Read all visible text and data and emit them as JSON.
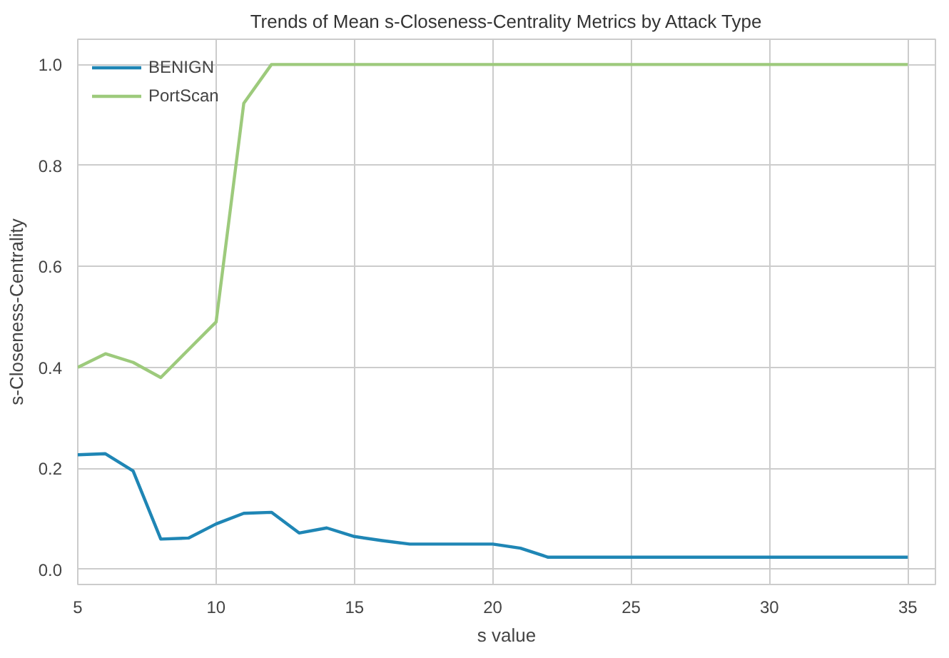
{
  "chart_data": {
    "type": "line",
    "title": "Trends of Mean s-Closeness-Centrality Metrics by Attack Type",
    "xlabel": "s value",
    "ylabel": "s-Closeness-Centrality",
    "x": [
      5,
      6,
      7,
      8,
      9,
      10,
      11,
      12,
      13,
      14,
      15,
      16,
      17,
      18,
      19,
      20,
      21,
      22,
      23,
      24,
      25,
      26,
      27,
      28,
      29,
      30,
      31,
      32,
      33,
      34,
      35
    ],
    "series": [
      {
        "name": "BENIGN",
        "color": "#1f86b5",
        "values": [
          0.227,
          0.229,
          0.195,
          0.06,
          0.062,
          0.09,
          0.111,
          0.113,
          0.072,
          0.082,
          0.065,
          0.057,
          0.05,
          0.05,
          0.05,
          0.05,
          0.042,
          0.024,
          0.024,
          0.024,
          0.024,
          0.024,
          0.024,
          0.024,
          0.024,
          0.024,
          0.024,
          0.024,
          0.024,
          0.024,
          0.024
        ]
      },
      {
        "name": "PortScan",
        "color": "#9dca7c",
        "values": [
          0.4,
          0.427,
          0.41,
          0.38,
          0.435,
          0.49,
          0.923,
          1.0,
          1.0,
          1.0,
          1.0,
          1.0,
          1.0,
          1.0,
          1.0,
          1.0,
          1.0,
          1.0,
          1.0,
          1.0,
          1.0,
          1.0,
          1.0,
          1.0,
          1.0,
          1.0,
          1.0,
          1.0,
          1.0,
          1.0,
          1.0
        ]
      }
    ],
    "xlim": [
      5,
      36
    ],
    "ylim": [
      -0.03,
      1.05
    ],
    "xticks": [
      5,
      10,
      15,
      20,
      25,
      30,
      35
    ],
    "yticks": [
      {
        "value": 0,
        "label": "0.0"
      },
      {
        "value": 0.2,
        "label": "0.2"
      },
      {
        "value": 0.4,
        "label": "0.4"
      },
      {
        "value": 0.6,
        "label": "0.6"
      },
      {
        "value": 0.8,
        "label": "0.8"
      },
      {
        "value": 1,
        "label": "1.0"
      }
    ],
    "grid": true,
    "legend": "top left"
  }
}
